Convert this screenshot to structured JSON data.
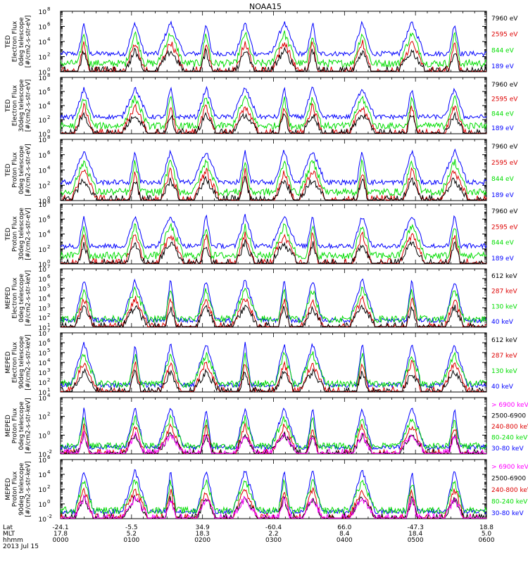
{
  "title": "NOAA15",
  "colors": {
    "black": "#000000",
    "red": "#dd0000",
    "green": "#00dd00",
    "blue": "#0000ff",
    "magenta": "#ff00ff"
  },
  "chart_data": [
    {
      "type": "line",
      "panel": 1,
      "ylabel": [
        "TED",
        "Electron Flux",
        "0deg telescope",
        "[#/cm2-s-str-eV]"
      ],
      "scale": "log",
      "ytick_exponents": [
        0,
        2,
        4,
        6,
        8
      ],
      "series": [
        {
          "name": "7960 eV",
          "color": "#000000"
        },
        {
          "name": "2595 eV",
          "color": "#dd0000"
        },
        {
          "name": "844 eV",
          "color": "#00dd00"
        },
        {
          "name": "189 eV",
          "color": "#0000ff"
        }
      ]
    },
    {
      "type": "line",
      "panel": 2,
      "ylabel": [
        "TED",
        "Electron Flux",
        "30deg telescope",
        "[#/cm2-s-str-eV]"
      ],
      "scale": "log",
      "ytick_exponents": [
        0,
        2,
        4,
        6,
        8
      ],
      "series": [
        {
          "name": "7960 eV",
          "color": "#000000"
        },
        {
          "name": "2595 eV",
          "color": "#dd0000"
        },
        {
          "name": "844 eV",
          "color": "#00dd00"
        },
        {
          "name": "189 eV",
          "color": "#0000ff"
        }
      ]
    },
    {
      "type": "line",
      "panel": 3,
      "ylabel": [
        "TED",
        "Proton Flux",
        "0deg telescope",
        "[#/cm2-s-str-eV]"
      ],
      "scale": "log",
      "ytick_exponents": [
        0,
        2,
        4,
        6,
        8
      ],
      "series": [
        {
          "name": "7960 eV",
          "color": "#000000"
        },
        {
          "name": "2595 eV",
          "color": "#dd0000"
        },
        {
          "name": "844 eV",
          "color": "#00dd00"
        },
        {
          "name": "189 eV",
          "color": "#0000ff"
        }
      ]
    },
    {
      "type": "line",
      "panel": 4,
      "ylabel": [
        "TED",
        "Proton Flux",
        "30deg telescope",
        "[#/cm2-s-str-eV]"
      ],
      "scale": "log",
      "ytick_exponents": [
        0,
        2,
        4,
        6,
        8
      ],
      "series": [
        {
          "name": "7960 eV",
          "color": "#000000"
        },
        {
          "name": "2595 eV",
          "color": "#dd0000"
        },
        {
          "name": "844 eV",
          "color": "#00dd00"
        },
        {
          "name": "189 eV",
          "color": "#0000ff"
        }
      ]
    },
    {
      "type": "line",
      "panel": 5,
      "ylabel": [
        "MEPED",
        "Electron Flux",
        "0deg telescope",
        "[#/cm2-s-str-keV]"
      ],
      "scale": "log",
      "ytick_exponents": [
        1,
        2,
        3,
        4,
        5,
        6,
        7
      ],
      "series": [
        {
          "name": "612 keV",
          "color": "#000000"
        },
        {
          "name": "287 keV",
          "color": "#dd0000"
        },
        {
          "name": "130 keV",
          "color": "#00dd00"
        },
        {
          "name": "40 keV",
          "color": "#0000ff"
        }
      ]
    },
    {
      "type": "line",
      "panel": 6,
      "ylabel": [
        "MEPED",
        "Electron Flux",
        "90deg telescope",
        "[#/cm2-s-str-keV]"
      ],
      "scale": "log",
      "ytick_exponents": [
        1,
        2,
        3,
        4,
        5,
        6,
        7
      ],
      "series": [
        {
          "name": "612 keV",
          "color": "#000000"
        },
        {
          "name": "287 keV",
          "color": "#dd0000"
        },
        {
          "name": "130 keV",
          "color": "#00dd00"
        },
        {
          "name": "40 keV",
          "color": "#0000ff"
        }
      ]
    },
    {
      "type": "line",
      "panel": 7,
      "ylabel": [
        "MEPED",
        "Proton Flux",
        "0deg telescope",
        "[#/cm2-s-str-keV]"
      ],
      "scale": "log",
      "ytick_exponents": [
        -2,
        0,
        2,
        4
      ],
      "series": [
        {
          "name": "> 6900 keV",
          "color": "#ff00ff"
        },
        {
          "name": "2500-6900",
          "color": "#000000"
        },
        {
          "name": "240-800 keV",
          "color": "#dd0000"
        },
        {
          "name": "80-240 keV",
          "color": "#00dd00"
        },
        {
          "name": "30-80 keV",
          "color": "#0000ff"
        }
      ]
    },
    {
      "type": "line",
      "panel": 8,
      "ylabel": [
        "MEPED",
        "Proton Flux",
        "90deg telescope",
        "[#/cm2-s-str-keV]"
      ],
      "scale": "log",
      "ytick_exponents": [
        -2,
        0,
        2,
        4,
        6
      ],
      "series": [
        {
          "name": "> 6900 keV",
          "color": "#ff00ff"
        },
        {
          "name": "2500-6900",
          "color": "#000000"
        },
        {
          "name": "240-800 keV",
          "color": "#dd0000"
        },
        {
          "name": "80-240 keV",
          "color": "#00dd00"
        },
        {
          "name": "30-80 keV",
          "color": "#0000ff"
        }
      ]
    }
  ],
  "xaxis": {
    "row_labels": [
      "Lat",
      "MLT",
      "hhmm",
      "2013 Jul 15"
    ],
    "columns": [
      {
        "lat": "-24.1",
        "mlt": "17.8",
        "hhmm": "0000"
      },
      {
        "lat": "-5.5",
        "mlt": "5.2",
        "hhmm": "0100"
      },
      {
        "lat": "34.9",
        "mlt": "18.3",
        "hhmm": "0200"
      },
      {
        "lat": "-60.4",
        "mlt": "2.2",
        "hhmm": "0300"
      },
      {
        "lat": "66.0",
        "mlt": "8.4",
        "hhmm": "0400"
      },
      {
        "lat": "-47.3",
        "mlt": "18.4",
        "hhmm": "0500"
      },
      {
        "lat": "18.8",
        "mlt": "5.0",
        "hhmm": "0600"
      }
    ]
  }
}
